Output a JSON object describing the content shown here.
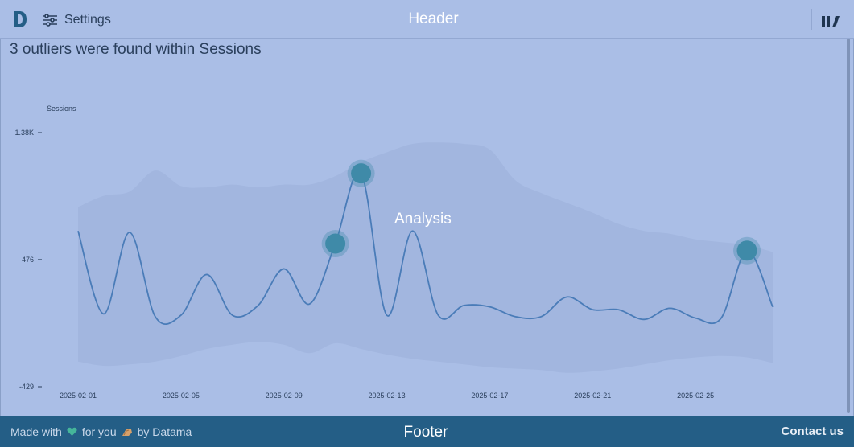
{
  "header": {
    "title": "Header",
    "settings_label": "Settings"
  },
  "page": {
    "title": "3 outliers were found within Sessions"
  },
  "overlay": {
    "analysis_label": "Analysis"
  },
  "footer": {
    "made_with": "Made with",
    "for_you": "for you",
    "by": "by Datama",
    "title": "Footer",
    "contact_label": "Contact us"
  },
  "colors": {
    "line": "#4a7cb8",
    "outlier": "#3f8aa8",
    "band": "#9fb3dc",
    "footer": "#245e86"
  },
  "chart_data": {
    "type": "line",
    "ylabel": "Sessions",
    "yticks": [
      "1.38K",
      "476",
      "-429"
    ],
    "ytick_values": [
      1380,
      476,
      -429
    ],
    "ylim": [
      -429,
      1380
    ],
    "x_tick_labels": [
      "2025-02-01",
      "2025-02-05",
      "2025-02-09",
      "2025-02-13",
      "2025-02-17",
      "2025-02-21",
      "2025-02-25"
    ],
    "x": [
      "2025-02-01",
      "2025-02-02",
      "2025-02-03",
      "2025-02-04",
      "2025-02-05",
      "2025-02-06",
      "2025-02-07",
      "2025-02-08",
      "2025-02-09",
      "2025-02-10",
      "2025-02-11",
      "2025-02-12",
      "2025-02-13",
      "2025-02-14",
      "2025-02-15",
      "2025-02-16",
      "2025-02-17",
      "2025-02-18",
      "2025-02-19",
      "2025-02-20",
      "2025-02-21",
      "2025-02-22",
      "2025-02-23",
      "2025-02-24",
      "2025-02-25",
      "2025-02-26",
      "2025-02-27",
      "2025-02-28"
    ],
    "values": [
      680,
      90,
      670,
      70,
      80,
      370,
      80,
      150,
      410,
      160,
      590,
      1090,
      80,
      680,
      80,
      150,
      140,
      70,
      70,
      210,
      120,
      120,
      50,
      130,
      60,
      60,
      540,
      140
    ],
    "band_lower": [
      -250,
      -280,
      -270,
      -250,
      -210,
      -160,
      -130,
      -110,
      -130,
      -190,
      -120,
      -160,
      -200,
      -230,
      -250,
      -270,
      -290,
      -300,
      -310,
      -330,
      -320,
      -300,
      -270,
      -240,
      -220,
      -210,
      -220,
      -260
    ],
    "band_upper": [
      850,
      930,
      960,
      1110,
      1000,
      990,
      1010,
      990,
      1010,
      1010,
      1070,
      1170,
      1240,
      1300,
      1310,
      1300,
      1260,
      1040,
      950,
      880,
      810,
      730,
      680,
      660,
      620,
      600,
      580,
      530
    ],
    "outliers": [
      {
        "x": "2025-02-11",
        "value": 590
      },
      {
        "x": "2025-02-12",
        "value": 1090
      },
      {
        "x": "2025-02-27",
        "value": 540
      }
    ]
  }
}
